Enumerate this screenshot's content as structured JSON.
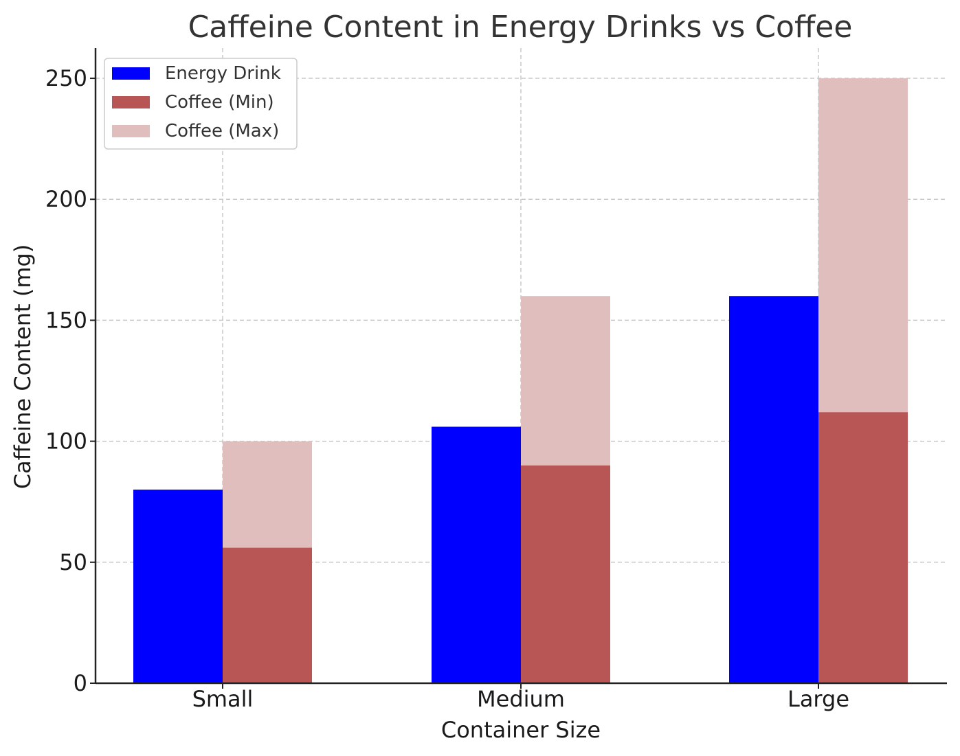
{
  "chart_data": {
    "type": "bar",
    "title": "Caffeine Content in Energy Drinks vs Coffee",
    "xlabel": "Container Size",
    "ylabel": "Caffeine Content (mg)",
    "categories": [
      "Small",
      "Medium",
      "Large"
    ],
    "series": [
      {
        "name": "Energy Drink",
        "values": [
          80,
          106,
          160
        ],
        "color": "#0000ff"
      },
      {
        "name": "Coffee (Min)",
        "values": [
          56,
          90,
          112
        ],
        "color": "#b85555"
      },
      {
        "name": "Coffee (Max)",
        "values": [
          100,
          160,
          250
        ],
        "color": "#e1bebe"
      }
    ],
    "ylim": [
      0,
      262.5
    ],
    "yticks": [
      0,
      50,
      100,
      150,
      200,
      250
    ],
    "grid": true,
    "legend": "top-left"
  }
}
